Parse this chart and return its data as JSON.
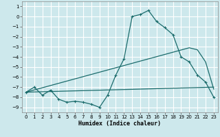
{
  "xlabel": "Humidex (Indice chaleur)",
  "xlim": [
    -0.5,
    23.5
  ],
  "ylim": [
    -9.5,
    1.5
  ],
  "yticks": [
    1,
    0,
    -1,
    -2,
    -3,
    -4,
    -5,
    -6,
    -7,
    -8,
    -9
  ],
  "xticks": [
    0,
    1,
    2,
    3,
    4,
    5,
    6,
    7,
    8,
    9,
    10,
    11,
    12,
    13,
    14,
    15,
    16,
    17,
    18,
    19,
    20,
    21,
    22,
    23
  ],
  "bg_color": "#cde8ec",
  "line_color": "#1a6b6b",
  "grid_color": "#b0d8de",
  "curve1_x": [
    0,
    1,
    2,
    3,
    4,
    5,
    6,
    7,
    8,
    9,
    10,
    11,
    12,
    13,
    14,
    15,
    16,
    17,
    18,
    19,
    20,
    21,
    22,
    23
  ],
  "curve1_y": [
    -7.5,
    -7.0,
    -7.8,
    -7.3,
    -8.2,
    -8.5,
    -8.4,
    -8.5,
    -8.7,
    -9.0,
    -7.8,
    -5.8,
    -4.2,
    0.0,
    0.2,
    0.6,
    -0.5,
    -1.1,
    -1.8,
    -4.0,
    -4.5,
    -5.8,
    -6.5,
    -8.0
  ],
  "line2_x": [
    0,
    20,
    21,
    22,
    23
  ],
  "line2_y": [
    -7.5,
    -3.1,
    -3.3,
    -4.5,
    -7.2
  ],
  "line3_x": [
    0,
    23
  ],
  "line3_y": [
    -7.5,
    -7.0
  ]
}
